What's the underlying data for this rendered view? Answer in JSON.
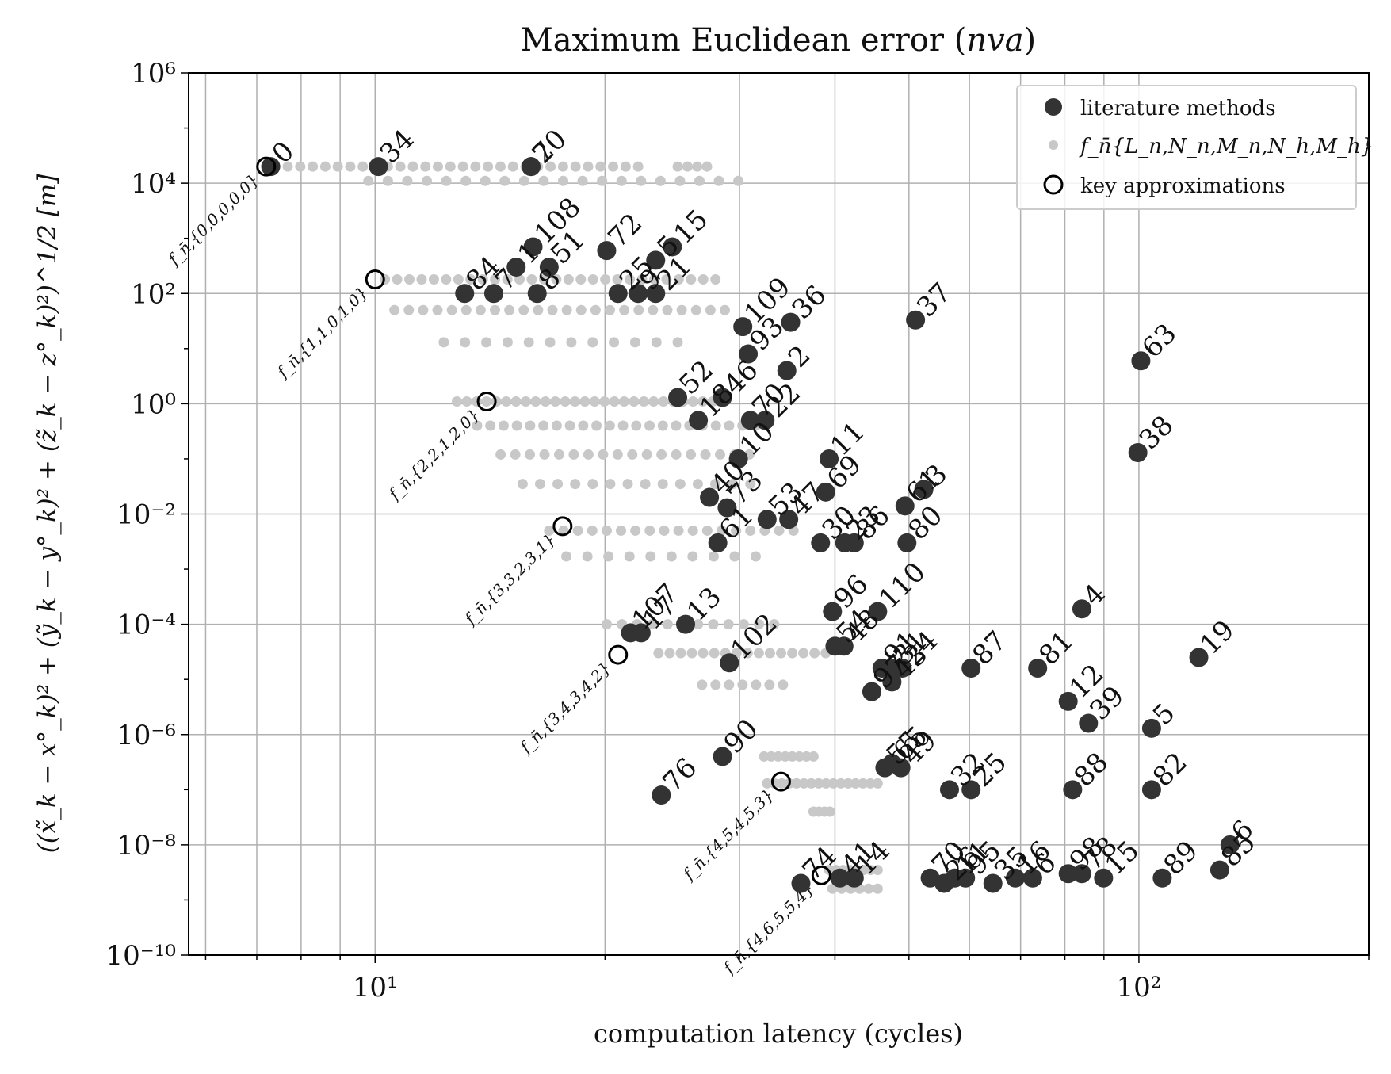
{
  "chart_data": {
    "type": "scatter",
    "title": "Maximum Euclidean error (",
    "title_math": "nva",
    "title_close": ")",
    "xlabel": "computation latency (cycles)",
    "ylabel": "((x̃_k − x°_k)² + (ỹ_k − y°_k)² + (z̃_k − z°_k)²)^1/2 [m]",
    "x_scale": "log",
    "y_scale": "log",
    "xlim": [
      5.7,
      200
    ],
    "ylim": [
      1e-10,
      1000000.0
    ],
    "grid": true,
    "x_ticks": [
      {
        "value": 10,
        "label": "10¹"
      },
      {
        "value": 100,
        "label": "10²"
      }
    ],
    "y_ticks": [
      {
        "value": 1e-10,
        "label": "10⁻¹⁰"
      },
      {
        "value": 1e-08,
        "label": "10⁻⁸"
      },
      {
        "value": 1e-06,
        "label": "10⁻⁶"
      },
      {
        "value": 0.0001,
        "label": "10⁻⁴"
      },
      {
        "value": 0.01,
        "label": "10⁻²"
      },
      {
        "value": 1,
        "label": "10⁰"
      },
      {
        "value": 100,
        "label": "10²"
      },
      {
        "value": 10000,
        "label": "10⁴"
      },
      {
        "value": 1000000,
        "label": "10⁶"
      }
    ],
    "legend": {
      "placement": "top-right",
      "entries": [
        {
          "label": "literature methods",
          "marker": "filled-dark-circle"
        },
        {
          "label": "f_n̄{L_n,N_n,M_n,N_h,M_h}",
          "marker": "small-grey-dot"
        },
        {
          "label": "key approximations",
          "marker": "hollow-circle"
        }
      ]
    },
    "colors": {
      "literature": "#333333",
      "family": "#c8c8c8",
      "key": "#000000",
      "grid": "#b0b0b0"
    },
    "series": [
      {
        "name": "literature methods",
        "points": [
          {
            "label": "0",
            "x": 7.3,
            "y": 20000
          },
          {
            "label": "34",
            "x": 10.1,
            "y": 20000
          },
          {
            "label": "20",
            "x": 16.0,
            "y": 20000
          },
          {
            "label": "7",
            "x": 16.0,
            "y": 20000
          },
          {
            "label": "84",
            "x": 13.1,
            "y": 100
          },
          {
            "label": "7",
            "x": 14.3,
            "y": 100
          },
          {
            "label": "1",
            "x": 15.3,
            "y": 300
          },
          {
            "label": "108",
            "x": 16.1,
            "y": 700
          },
          {
            "label": "8",
            "x": 16.3,
            "y": 100
          },
          {
            "label": "51",
            "x": 16.9,
            "y": 300
          },
          {
            "label": "72",
            "x": 20.1,
            "y": 600
          },
          {
            "label": "25",
            "x": 20.8,
            "y": 100
          },
          {
            "label": "9",
            "x": 22.1,
            "y": 100
          },
          {
            "label": "21",
            "x": 23.3,
            "y": 100
          },
          {
            "label": "5",
            "x": 23.3,
            "y": 400
          },
          {
            "label": "15",
            "x": 24.5,
            "y": 700
          },
          {
            "label": "109",
            "x": 30.3,
            "y": 25
          },
          {
            "label": "36",
            "x": 35.0,
            "y": 30
          },
          {
            "label": "93",
            "x": 30.8,
            "y": 8
          },
          {
            "label": "2",
            "x": 34.6,
            "y": 4
          },
          {
            "label": "52",
            "x": 24.9,
            "y": 1.3
          },
          {
            "label": "46",
            "x": 28.5,
            "y": 1.3
          },
          {
            "label": "18",
            "x": 26.5,
            "y": 0.5
          },
          {
            "label": "70",
            "x": 31.0,
            "y": 0.5
          },
          {
            "label": "22",
            "x": 32.4,
            "y": 0.5
          },
          {
            "label": "10",
            "x": 29.9,
            "y": 0.1
          },
          {
            "label": "40",
            "x": 27.4,
            "y": 0.02
          },
          {
            "label": "73",
            "x": 28.9,
            "y": 0.013
          },
          {
            "label": "53",
            "x": 32.6,
            "y": 0.008
          },
          {
            "label": "47",
            "x": 34.8,
            "y": 0.008
          },
          {
            "label": "61",
            "x": 28.1,
            "y": 0.003
          },
          {
            "label": "11",
            "x": 39.3,
            "y": 0.1
          },
          {
            "label": "69",
            "x": 38.9,
            "y": 0.025
          },
          {
            "label": "30",
            "x": 38.3,
            "y": 0.003
          },
          {
            "label": "23",
            "x": 41.2,
            "y": 0.003
          },
          {
            "label": "86",
            "x": 42.4,
            "y": 0.003
          },
          {
            "label": "61",
            "x": 49.4,
            "y": 0.014
          },
          {
            "label": "3",
            "x": 52.3,
            "y": 0.028
          },
          {
            "label": "80",
            "x": 49.7,
            "y": 0.003
          },
          {
            "label": "37",
            "x": 51.0,
            "y": 33
          },
          {
            "label": "63",
            "x": 100.6,
            "y": 6
          },
          {
            "label": "38",
            "x": 99.7,
            "y": 0.13
          },
          {
            "label": "107",
            "x": 21.6,
            "y": 7e-05
          },
          {
            "label": "17",
            "x": 22.3,
            "y": 7e-05
          },
          {
            "label": "13",
            "x": 25.5,
            "y": 0.0001
          },
          {
            "label": "96",
            "x": 39.7,
            "y": 0.00017
          },
          {
            "label": "110",
            "x": 45.5,
            "y": 0.00017
          },
          {
            "label": "54",
            "x": 40.0,
            "y": 4e-05
          },
          {
            "label": "48",
            "x": 41.1,
            "y": 4e-05
          },
          {
            "label": "102",
            "x": 29.1,
            "y": 2e-05
          },
          {
            "label": "91",
            "x": 46.1,
            "y": 1.6e-05
          },
          {
            "label": "31",
            "x": 47.5,
            "y": 1.6e-05
          },
          {
            "label": "24",
            "x": 49.0,
            "y": 1.6e-05
          },
          {
            "label": "43",
            "x": 47.5,
            "y": 9e-06
          },
          {
            "label": "97",
            "x": 44.7,
            "y": 6e-06
          },
          {
            "label": "87",
            "x": 60.3,
            "y": 1.6e-05
          },
          {
            "label": "81",
            "x": 73.7,
            "y": 1.6e-05
          },
          {
            "label": "4",
            "x": 84.2,
            "y": 0.00019
          },
          {
            "label": "19",
            "x": 119.8,
            "y": 2.5e-05
          },
          {
            "label": "12",
            "x": 80.8,
            "y": 4e-06
          },
          {
            "label": "39",
            "x": 85.9,
            "y": 1.6e-06
          },
          {
            "label": "5",
            "x": 103.9,
            "y": 1.3e-06
          },
          {
            "label": "90",
            "x": 28.5,
            "y": 4e-07
          },
          {
            "label": "76",
            "x": 23.7,
            "y": 8e-08
          },
          {
            "label": "55",
            "x": 46.5,
            "y": 2.5e-07
          },
          {
            "label": "65",
            "x": 47.5,
            "y": 3e-07
          },
          {
            "label": "49",
            "x": 48.8,
            "y": 2.5e-07
          },
          {
            "label": "32",
            "x": 56.5,
            "y": 1e-07
          },
          {
            "label": "25",
            "x": 60.3,
            "y": 1e-07
          },
          {
            "label": "88",
            "x": 81.9,
            "y": 1e-07
          },
          {
            "label": "82",
            "x": 103.9,
            "y": 1e-07
          },
          {
            "label": "74",
            "x": 36.1,
            "y": 2e-09
          },
          {
            "label": "41",
            "x": 40.6,
            "y": 2.5e-09
          },
          {
            "label": "14",
            "x": 42.4,
            "y": 2.5e-09
          },
          {
            "label": "70",
            "x": 53.3,
            "y": 2.5e-09
          },
          {
            "label": "26",
            "x": 55.6,
            "y": 2e-09
          },
          {
            "label": "11",
            "x": 57.4,
            "y": 2.5e-09
          },
          {
            "label": "95",
            "x": 59.3,
            "y": 2.5e-09
          },
          {
            "label": "35",
            "x": 64.4,
            "y": 2e-09
          },
          {
            "label": "16",
            "x": 68.9,
            "y": 2.5e-09
          },
          {
            "label": "6",
            "x": 72.6,
            "y": 2.5e-09
          },
          {
            "label": "98",
            "x": 80.8,
            "y": 3e-09
          },
          {
            "label": "78",
            "x": 84.2,
            "y": 3e-09
          },
          {
            "label": "15",
            "x": 89.9,
            "y": 2.5e-09
          },
          {
            "label": "89",
            "x": 107.3,
            "y": 2.5e-09
          },
          {
            "label": "85",
            "x": 127.6,
            "y": 3.5e-09
          },
          {
            "label": "6",
            "x": 131.6,
            "y": 1e-08
          }
        ]
      },
      {
        "name": "f_n̄{L_n,N_n,M_n,N_h,M_h}",
        "clusters": [
          {
            "y": 20000,
            "x_from": 7.4,
            "x_to": 22.1,
            "count": 30
          },
          {
            "y": 11000,
            "x_from": 9.8,
            "x_to": 29.9,
            "count": 20
          },
          {
            "y": 20000,
            "x_from": 24.9,
            "x_to": 27.2,
            "count": 4
          },
          {
            "y": 180,
            "x_from": 10.3,
            "x_to": 27.9,
            "count": 28
          },
          {
            "y": 50,
            "x_from": 10.6,
            "x_to": 28.7,
            "count": 24
          },
          {
            "y": 13,
            "x_from": 12.3,
            "x_to": 24.9,
            "count": 12
          },
          {
            "y": 1.1,
            "x_from": 12.8,
            "x_to": 28.5,
            "count": 28
          },
          {
            "y": 0.4,
            "x_from": 13.6,
            "x_to": 31.5,
            "count": 22
          },
          {
            "y": 0.12,
            "x_from": 14.6,
            "x_to": 30.9,
            "count": 18
          },
          {
            "y": 0.035,
            "x_from": 15.6,
            "x_to": 31.0,
            "count": 14
          },
          {
            "y": 0.005,
            "x_from": 16.9,
            "x_to": 35.3,
            "count": 18
          },
          {
            "y": 0.0017,
            "x_from": 17.8,
            "x_to": 31.5,
            "count": 10
          },
          {
            "y": 0.0001,
            "x_from": 20.1,
            "x_to": 33.3,
            "count": 12
          },
          {
            "y": 3e-05,
            "x_from": 23.5,
            "x_to": 38.9,
            "count": 16
          },
          {
            "y": 8e-06,
            "x_from": 26.8,
            "x_to": 34.2,
            "count": 7
          },
          {
            "y": 4e-07,
            "x_from": 32.3,
            "x_to": 37.5,
            "count": 8
          },
          {
            "y": 1.3e-07,
            "x_from": 32.6,
            "x_to": 45.5,
            "count": 16
          },
          {
            "y": 4e-08,
            "x_from": 37.5,
            "x_to": 39.4,
            "count": 4
          },
          {
            "y": 3.5e-09,
            "x_from": 39.3,
            "x_to": 45.5,
            "count": 8
          },
          {
            "y": 1.6e-09,
            "x_from": 39.7,
            "x_to": 45.5,
            "count": 6
          }
        ]
      },
      {
        "name": "key approximations",
        "points": [
          {
            "x": 7.2,
            "y": 20000,
            "annotation": "f_n̄,{0,0,0,0,0}"
          },
          {
            "x": 10.0,
            "y": 180,
            "annotation": "f_n̄,{1,1,0,1,0}"
          },
          {
            "x": 14.0,
            "y": 1.1,
            "annotation": "f_n̄,{2,2,1,2,0}"
          },
          {
            "x": 17.6,
            "y": 0.006,
            "annotation": "f_n̄,{3,3,2,3,1}"
          },
          {
            "x": 20.8,
            "y": 2.8e-05,
            "annotation": "f_n̄,{3,4,3,4,2}"
          },
          {
            "x": 34.0,
            "y": 1.4e-07,
            "annotation": "f_n̄,{4,5,4,5,3}"
          },
          {
            "x": 38.4,
            "y": 2.8e-09,
            "annotation": "f_n̄,{4,6,5,5,4}"
          }
        ]
      }
    ]
  }
}
